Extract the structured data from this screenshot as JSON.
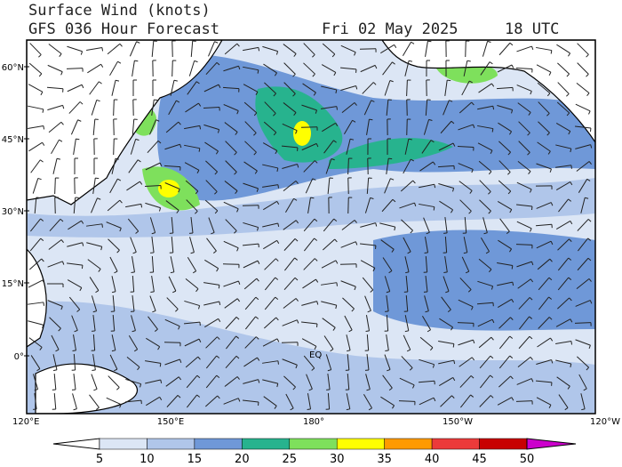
{
  "header": {
    "title": "Surface Wind (knots)",
    "subtitle": "GFS 036 Hour Forecast",
    "valid_date": "Fri 02 May 2025",
    "valid_hour": "18 UTC"
  },
  "map": {
    "lat_labels": [
      "60°N",
      "45°N",
      "30°N",
      "15°N",
      "0°"
    ],
    "lon_labels": [
      "120°E",
      "150°E",
      "180°",
      "150°W",
      "120°W"
    ],
    "equator_label": "EQ"
  },
  "colorbar": {
    "ticks": [
      5,
      10,
      15,
      20,
      25,
      30,
      35,
      40,
      45,
      50
    ],
    "colors": [
      "#ffffff",
      "#dce6f5",
      "#b0c6ea",
      "#6f98d8",
      "#27b38e",
      "#7ee05c",
      "#ffff00",
      "#ff9a00",
      "#ec3a3a",
      "#c80000",
      "#cc00cc"
    ]
  }
}
